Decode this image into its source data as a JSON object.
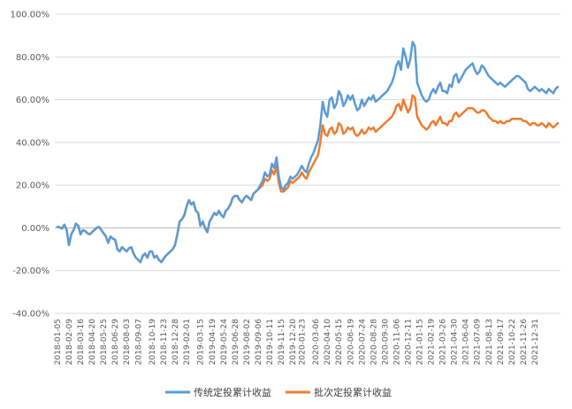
{
  "chart_data": {
    "type": "line",
    "title": "",
    "xlabel": "",
    "ylabel": "",
    "ylim": [
      -40,
      100
    ],
    "y_tick_values": [
      -40,
      -20,
      0,
      20,
      40,
      60,
      80,
      100
    ],
    "y_tick_labels": [
      "-40.00%",
      "-20.00%",
      "0.00%",
      "20.00%",
      "40.00%",
      "60.00%",
      "80.00%",
      "100.00%"
    ],
    "grid": "horizontal",
    "legend_position": "bottom",
    "x_tick_labels": [
      "2018-01-05",
      "2018-02-09",
      "2018-03-16",
      "2018-04-20",
      "2018-05-25",
      "2018-06-29",
      "2018-08-03",
      "2018-09-07",
      "2018-10-19",
      "2018-11-23",
      "2018-12-28",
      "2019-02-01",
      "2019-03-15",
      "2019-04-19",
      "2019-05-24",
      "2019-06-28",
      "2019-08-02",
      "2019-09-06",
      "2019-10-11",
      "2019-11-15",
      "2019-12-20",
      "2020-01-23",
      "2020-03-06",
      "2020-04-10",
      "2020-05-15",
      "2020-06-19",
      "2020-07-24",
      "2020-08-28",
      "2020-09-30",
      "2020-11-06",
      "2020-12-11",
      "2021-01-15",
      "2021-02-19",
      "2021-03-26",
      "2021-04-30",
      "2021-06-04",
      "2021-07-09",
      "2021-08-13",
      "2021-09-17",
      "2021-10-22",
      "2021-11-26",
      "2021-12-31"
    ],
    "x_tick_index": [
      0,
      5,
      10,
      15,
      20,
      25,
      30,
      35,
      41,
      46,
      51,
      56,
      62,
      67,
      72,
      77,
      82,
      87,
      92,
      97,
      102,
      106,
      112,
      117,
      122,
      127,
      132,
      137,
      142,
      147,
      152,
      157,
      162,
      167,
      172,
      177,
      182,
      187,
      192,
      197,
      202,
      207
    ],
    "series": [
      {
        "name": "传统定投累计收益",
        "color": "#5b9bd5",
        "values": [
          0.5,
          0.2,
          -0.3,
          1.5,
          -1,
          -8,
          -3,
          -1,
          2,
          1,
          -3,
          -1,
          -1.5,
          -2.5,
          -3,
          -2,
          -1,
          0,
          0.5,
          -1,
          -2.5,
          -4,
          -7,
          -4,
          -5,
          -5.5,
          -10,
          -11,
          -9,
          -10,
          -11,
          -9.5,
          -9,
          -12,
          -14,
          -15,
          -16,
          -13,
          -12,
          -14,
          -11,
          -11,
          -14,
          -13,
          -15,
          -16,
          -14.5,
          -13,
          -12,
          -11,
          -10,
          -8,
          -3,
          3,
          4,
          6,
          10,
          13,
          11,
          12,
          8,
          7,
          1,
          3,
          0,
          -2,
          3,
          5,
          7,
          6,
          8,
          6,
          5,
          8,
          9,
          11,
          14,
          15,
          15,
          13,
          12,
          14,
          15,
          14,
          13,
          16,
          17,
          18,
          20,
          22,
          26,
          24,
          25,
          30,
          28,
          33,
          24,
          19,
          18,
          20,
          21,
          24,
          23,
          24,
          25,
          27,
          29,
          27,
          26,
          30,
          33,
          35,
          38,
          41,
          48,
          59,
          54,
          52,
          60,
          61,
          56,
          58,
          64,
          62,
          57,
          59,
          62,
          60,
          62,
          58,
          55,
          56,
          60,
          57,
          59,
          61,
          60,
          62,
          59,
          60,
          61,
          62,
          63,
          64,
          66,
          68,
          71,
          76,
          78,
          74,
          84,
          80,
          75,
          79,
          87,
          85,
          68,
          65,
          62,
          60,
          59,
          60,
          63,
          65,
          63,
          66,
          68,
          64,
          64,
          63,
          67,
          66,
          71,
          72,
          68,
          70,
          72,
          74,
          75,
          76,
          77,
          74,
          72,
          73,
          76,
          75,
          73,
          71,
          70,
          69,
          68,
          67,
          68,
          67,
          66,
          67,
          68,
          69,
          70,
          71,
          71,
          70,
          69,
          68,
          65,
          64,
          65,
          66,
          65,
          64,
          65,
          64,
          63,
          65,
          64,
          63,
          65,
          66
        ]
      },
      {
        "name": "批次定投累计收益",
        "color": "#ed7d31",
        "values": [
          0.5,
          0.2,
          -0.3,
          1.5,
          -1,
          -8,
          -3,
          -1,
          2,
          1,
          -3,
          -1,
          -1.5,
          -2.5,
          -3,
          -2,
          -1,
          0,
          0.5,
          -1,
          -2.5,
          -4,
          -7,
          -4,
          -5,
          -5.5,
          -10,
          -11,
          -9,
          -10,
          -11,
          -9.5,
          -9,
          -12,
          -14,
          -15,
          -16,
          -13,
          -12,
          -14,
          -11,
          -11,
          -14,
          -13,
          -15,
          -16,
          -14.5,
          -13,
          -12,
          -11,
          -10,
          -8,
          -3,
          3,
          4,
          6,
          10,
          13,
          11,
          12,
          8,
          7,
          1,
          3,
          0,
          -2,
          3,
          5,
          7,
          6,
          8,
          6,
          5,
          8,
          9,
          11,
          14,
          15,
          15,
          13,
          12,
          14,
          15,
          14,
          13,
          16,
          17,
          18,
          19,
          20,
          23,
          22,
          23,
          27,
          25,
          29,
          21,
          17,
          17,
          18,
          19,
          22,
          21,
          22,
          23,
          24,
          26,
          24,
          23,
          26,
          28,
          30,
          32,
          34,
          40,
          48,
          44,
          43,
          46,
          47,
          44,
          45,
          49,
          48,
          44,
          45,
          47,
          46,
          47,
          44,
          43,
          44,
          46,
          44,
          45,
          47,
          46,
          47,
          45,
          46,
          47,
          48,
          49,
          50,
          51,
          52,
          54,
          57,
          58,
          55,
          60,
          57,
          54,
          56,
          62,
          61,
          52,
          50,
          48,
          47,
          46,
          47,
          49,
          50,
          48,
          50,
          52,
          49,
          49,
          48,
          50,
          50,
          53,
          54,
          52,
          53,
          54,
          55,
          56,
          56,
          56,
          55,
          54,
          54,
          55,
          55,
          54,
          52,
          51,
          50,
          50,
          49,
          50,
          49,
          49,
          50,
          50,
          51,
          51,
          51,
          51,
          51,
          50,
          50,
          49,
          48,
          49,
          49,
          48,
          48,
          49,
          48,
          47,
          49,
          48,
          47,
          48,
          49
        ]
      }
    ]
  }
}
